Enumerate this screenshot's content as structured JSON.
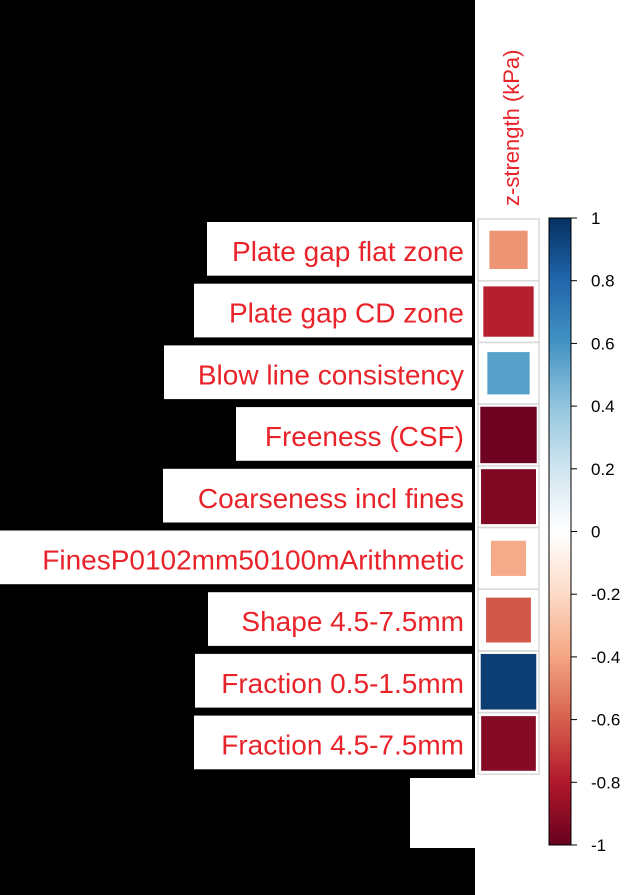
{
  "chart_data": {
    "type": "heatmap",
    "column_label": "z-strength (kPa)",
    "rows": [
      "Plate gap flat zone",
      "Plate gap CD zone",
      "Blow line consistency",
      "Freeness (CSF)",
      "Coarseness incl fines",
      "FinesP0102mm50100mArithmetic",
      "Shape 4.5-7.5mm",
      "Fraction 0.5-1.5mm",
      "Fraction 4.5-7.5mm"
    ],
    "values": [
      -0.45,
      -0.78,
      0.55,
      -0.98,
      -0.93,
      -0.38,
      -0.62,
      0.95,
      -0.92
    ],
    "colorbar": {
      "range": [
        -1,
        1
      ],
      "ticks": [
        1,
        0.8,
        0.6,
        0.4,
        0.2,
        0,
        -0.2,
        -0.4,
        -0.6,
        -0.8,
        -1
      ],
      "tick_labels": [
        "1",
        "0.8",
        "0.6",
        "0.4",
        "0.2",
        "0",
        "-0.2",
        "-0.4",
        "-0.6",
        "-0.8",
        "-1"
      ]
    },
    "colors": {
      "negative": "#67001f",
      "neutral": "#ffffff",
      "positive": "#053061",
      "label_text": "#e8232a",
      "background": "#000000"
    }
  }
}
